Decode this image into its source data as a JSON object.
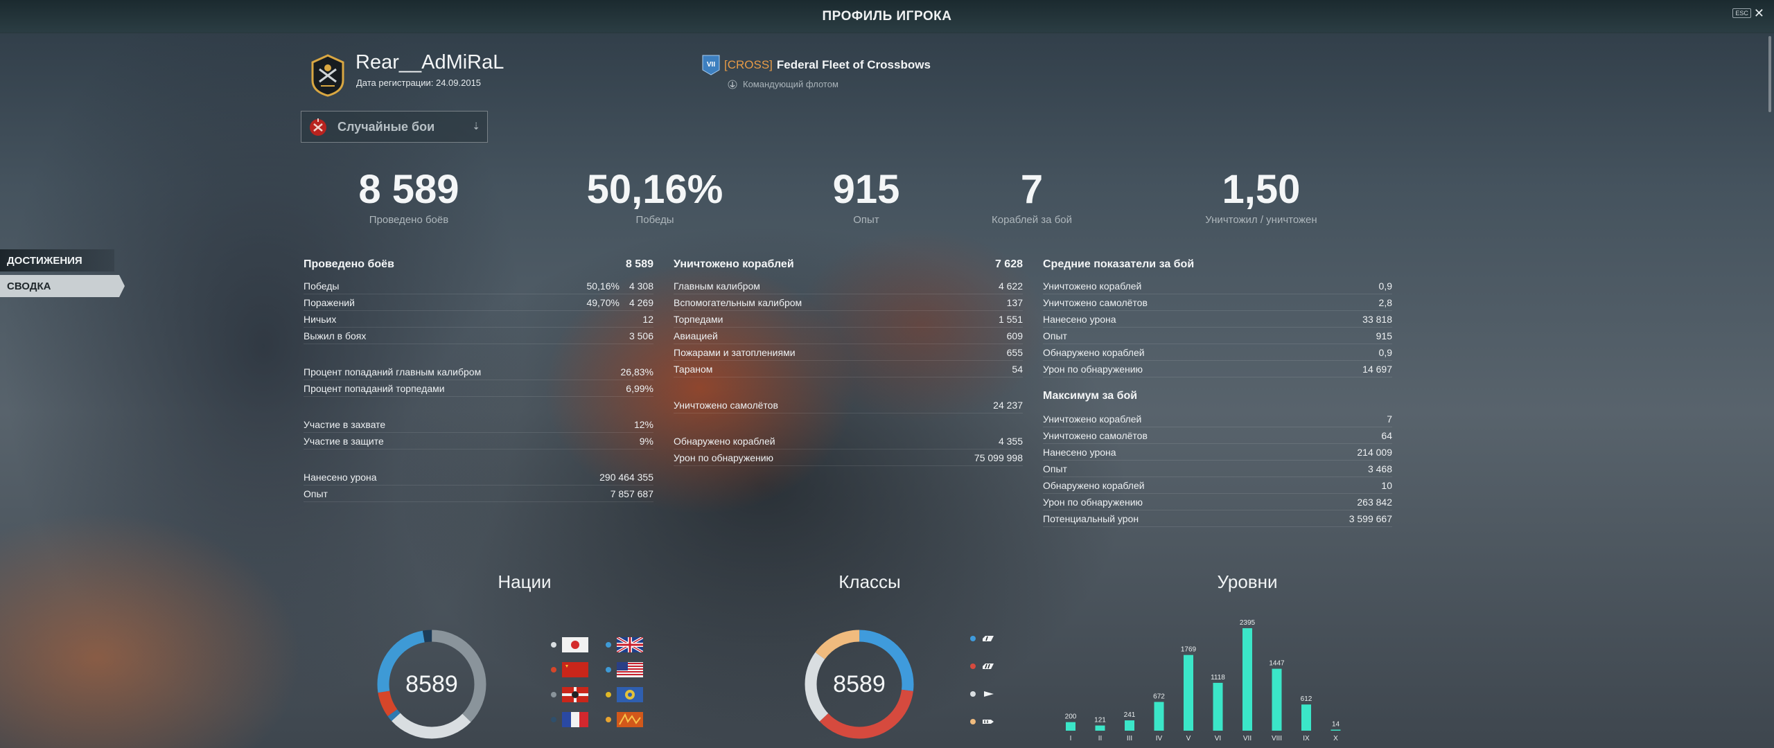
{
  "header": {
    "title": "ПРОФИЛЬ ИГРОКА",
    "esc_label": "ESC",
    "close_glyph": "✕"
  },
  "sidenav": {
    "items": [
      {
        "label": "ДОСТИЖЕНИЯ"
      },
      {
        "label": "СВОДКА",
        "active": true
      }
    ]
  },
  "profile": {
    "username": "Rear__AdMiRaL",
    "registration": "Дата регистрации: 24.09.2015"
  },
  "clan": {
    "rank": "VII",
    "tag": "[CROSS]",
    "name": "Federal Fleet of Crossbows",
    "role": "Командующий флотом"
  },
  "battle_type": {
    "selected": "Случайные бои",
    "arrow": "⇣"
  },
  "summary": [
    {
      "value": "8 589",
      "label": "Проведено боёв"
    },
    {
      "value": "50,16%",
      "label": "Победы"
    },
    {
      "value": "915",
      "label": "Опыт"
    },
    {
      "value": "7",
      "label": "Кораблей за бой"
    },
    {
      "value": "1,50",
      "label": "Уничтожил / уничтожен"
    }
  ],
  "battles": {
    "title": "Проведено боёв",
    "total": "8 589",
    "rows": [
      {
        "label": "Победы",
        "pct": "50,16%",
        "value": "4 308"
      },
      {
        "label": "Поражений",
        "pct": "49,70%",
        "value": "4 269"
      },
      {
        "label": "Ничьих",
        "pct": "",
        "value": "12"
      },
      {
        "label": "Выжил в боях",
        "pct": "",
        "value": "3 506"
      }
    ],
    "accuracy": [
      {
        "label": "Процент попаданий главным калибром",
        "value": "26,83%"
      },
      {
        "label": "Процент попаданий торпедами",
        "value": "6,99%"
      }
    ],
    "bases": [
      {
        "label": "Участие в захвате",
        "value": "12%"
      },
      {
        "label": "Участие в защите",
        "value": "9%"
      }
    ],
    "totals": [
      {
        "label": "Нанесено урона",
        "value": "290 464 355"
      },
      {
        "label": "Опыт",
        "value": "7 857 687"
      }
    ]
  },
  "destroyed": {
    "title": "Уничтожено кораблей",
    "total": "7 628",
    "rows": [
      {
        "label": "Главным калибром",
        "value": "4 622"
      },
      {
        "label": "Вспомогательным калибром",
        "value": "137"
      },
      {
        "label": "Торпедами",
        "value": "1 551"
      },
      {
        "label": "Авиацией",
        "value": "609"
      },
      {
        "label": "Пожарами и затоплениями",
        "value": "655"
      },
      {
        "label": "Тараном",
        "value": "54"
      }
    ],
    "planes": {
      "label": "Уничтожено самолётов",
      "value": "24 237"
    },
    "spotting": [
      {
        "label": "Обнаружено кораблей",
        "value": "4 355"
      },
      {
        "label": "Урон по обнаружению",
        "value": "75 099 998"
      }
    ]
  },
  "average": {
    "title": "Средние показатели за бой",
    "rows": [
      {
        "label": "Уничтожено кораблей",
        "value": "0,9"
      },
      {
        "label": "Уничтожено самолётов",
        "value": "2,8"
      },
      {
        "label": "Нанесено урона",
        "value": "33 818"
      },
      {
        "label": "Опыт",
        "value": "915"
      },
      {
        "label": "Обнаружено кораблей",
        "value": "0,9"
      },
      {
        "label": "Урон по обнаружению",
        "value": "14 697"
      }
    ]
  },
  "maximum": {
    "title": "Максимум за бой",
    "rows": [
      {
        "label": "Уничтожено кораблей",
        "value": "7"
      },
      {
        "label": "Уничтожено самолётов",
        "value": "64"
      },
      {
        "label": "Нанесено урона",
        "value": "214 009"
      },
      {
        "label": "Опыт",
        "value": "3 468"
      },
      {
        "label": "Обнаружено кораблей",
        "value": "10"
      },
      {
        "label": "Урон по обнаружению",
        "value": "263 842"
      },
      {
        "label": "Потенциальный урон",
        "value": "3 599 667"
      }
    ]
  },
  "nations": {
    "title": "Нации",
    "total": "8589",
    "colors": [
      "#8a949b",
      "#d9dee1",
      "#2f79b0",
      "#d6462a",
      "#3e9ad6",
      "#1d3b57"
    ],
    "share": [
      0.372,
      0.26,
      0.018,
      0.075,
      0.248,
      0.027
    ],
    "flags": [
      "japan-flag",
      "uk-flag",
      "ussr-flag",
      "usa-flag",
      "germany-flag",
      "pan-asia-flag",
      "france-flag",
      "commonwealth-flag"
    ],
    "legend_dots": [
      "#d9dee1",
      "#3e9ad6",
      "#d6462a",
      "#3e9ad6",
      "#8a949b",
      "#e0b826",
      "#2f4f6b",
      "#e8a430"
    ]
  },
  "classes": {
    "title": "Классы",
    "total": "8589",
    "colors": [
      "#3f9bdc",
      "#d64a3e",
      "#d9dee1",
      "#f0bb7e"
    ],
    "share": [
      0.27,
      0.36,
      0.22,
      0.15
    ],
    "icons": [
      "destroyer-icon",
      "cruiser-icon",
      "battleship-icon",
      "carrier-icon"
    ]
  },
  "chart_data": {
    "type": "bar",
    "title": "Уровни",
    "categories": [
      "I",
      "II",
      "III",
      "IV",
      "V",
      "VI",
      "VII",
      "VIII",
      "IX",
      "X"
    ],
    "values": [
      200,
      121,
      241,
      672,
      1769,
      1118,
      2395,
      1447,
      612,
      14
    ],
    "ylim": [
      0,
      2395
    ],
    "color": "#3be6c8"
  }
}
